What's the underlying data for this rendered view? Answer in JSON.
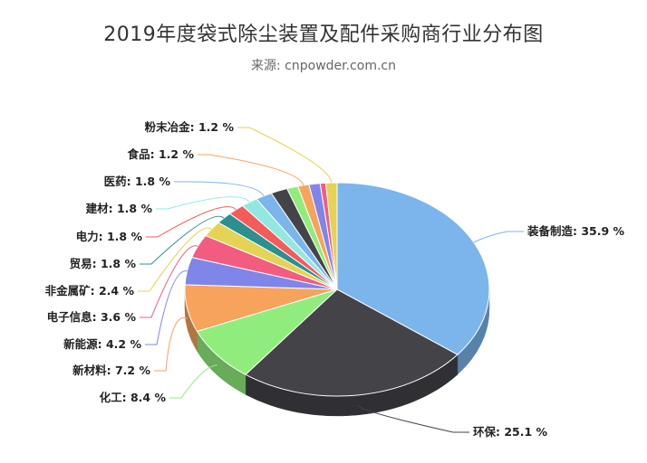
{
  "chart_data": {
    "type": "pie",
    "title": "2019年度袋式除尘装置及配件采购商行业分布图",
    "subtitle": "来源: cnpowder.com.cn",
    "slices": [
      {
        "name": "装备制造",
        "value": 35.9,
        "label": "装备制造: 35.9 %",
        "color": "#7cb5ec"
      },
      {
        "name": "环保",
        "value": 25.1,
        "label": "环保: 25.1 %",
        "color": "#434348"
      },
      {
        "name": "化工",
        "value": 8.4,
        "label": "化工: 8.4 %",
        "color": "#90ed7d"
      },
      {
        "name": "新材料",
        "value": 7.2,
        "label": "新材料: 7.2 %",
        "color": "#f7a35c"
      },
      {
        "name": "新能源",
        "value": 4.2,
        "label": "新能源: 4.2 %",
        "color": "#8085e9"
      },
      {
        "name": "电子信息",
        "value": 3.6,
        "label": "电子信息: 3.6 %",
        "color": "#f15c80"
      },
      {
        "name": "非金属矿",
        "value": 2.4,
        "label": "非金属矿: 2.4 %",
        "color": "#e4d354"
      },
      {
        "name": "贸易",
        "value": 1.8,
        "label": "贸易: 1.8 %",
        "color": "#2b908f"
      },
      {
        "name": "电力",
        "value": 1.8,
        "label": "电力: 1.8 %",
        "color": "#f45b5b"
      },
      {
        "name": "建材",
        "value": 1.8,
        "label": "建材: 1.8 %",
        "color": "#91e8e1"
      },
      {
        "name": "医药",
        "value": 1.8,
        "label": "医药: 1.8 %",
        "color": "#7cb5ec"
      },
      {
        "name": "",
        "value": 1.8,
        "label": "",
        "color": "#434348"
      },
      {
        "name": "",
        "value": 1.2,
        "label": "",
        "color": "#90ed7d"
      },
      {
        "name": "食品",
        "value": 1.2,
        "label": "食品: 1.2 %",
        "color": "#f7a35c"
      },
      {
        "name": "",
        "value": 1.2,
        "label": "",
        "color": "#8085e9"
      },
      {
        "name": "",
        "value": 0.6,
        "label": "",
        "color": "#f15c80"
      },
      {
        "name": "粉末冶金",
        "value": 1.2,
        "label": "粉末冶金: 1.2 %",
        "color": "#e4d354"
      }
    ]
  }
}
